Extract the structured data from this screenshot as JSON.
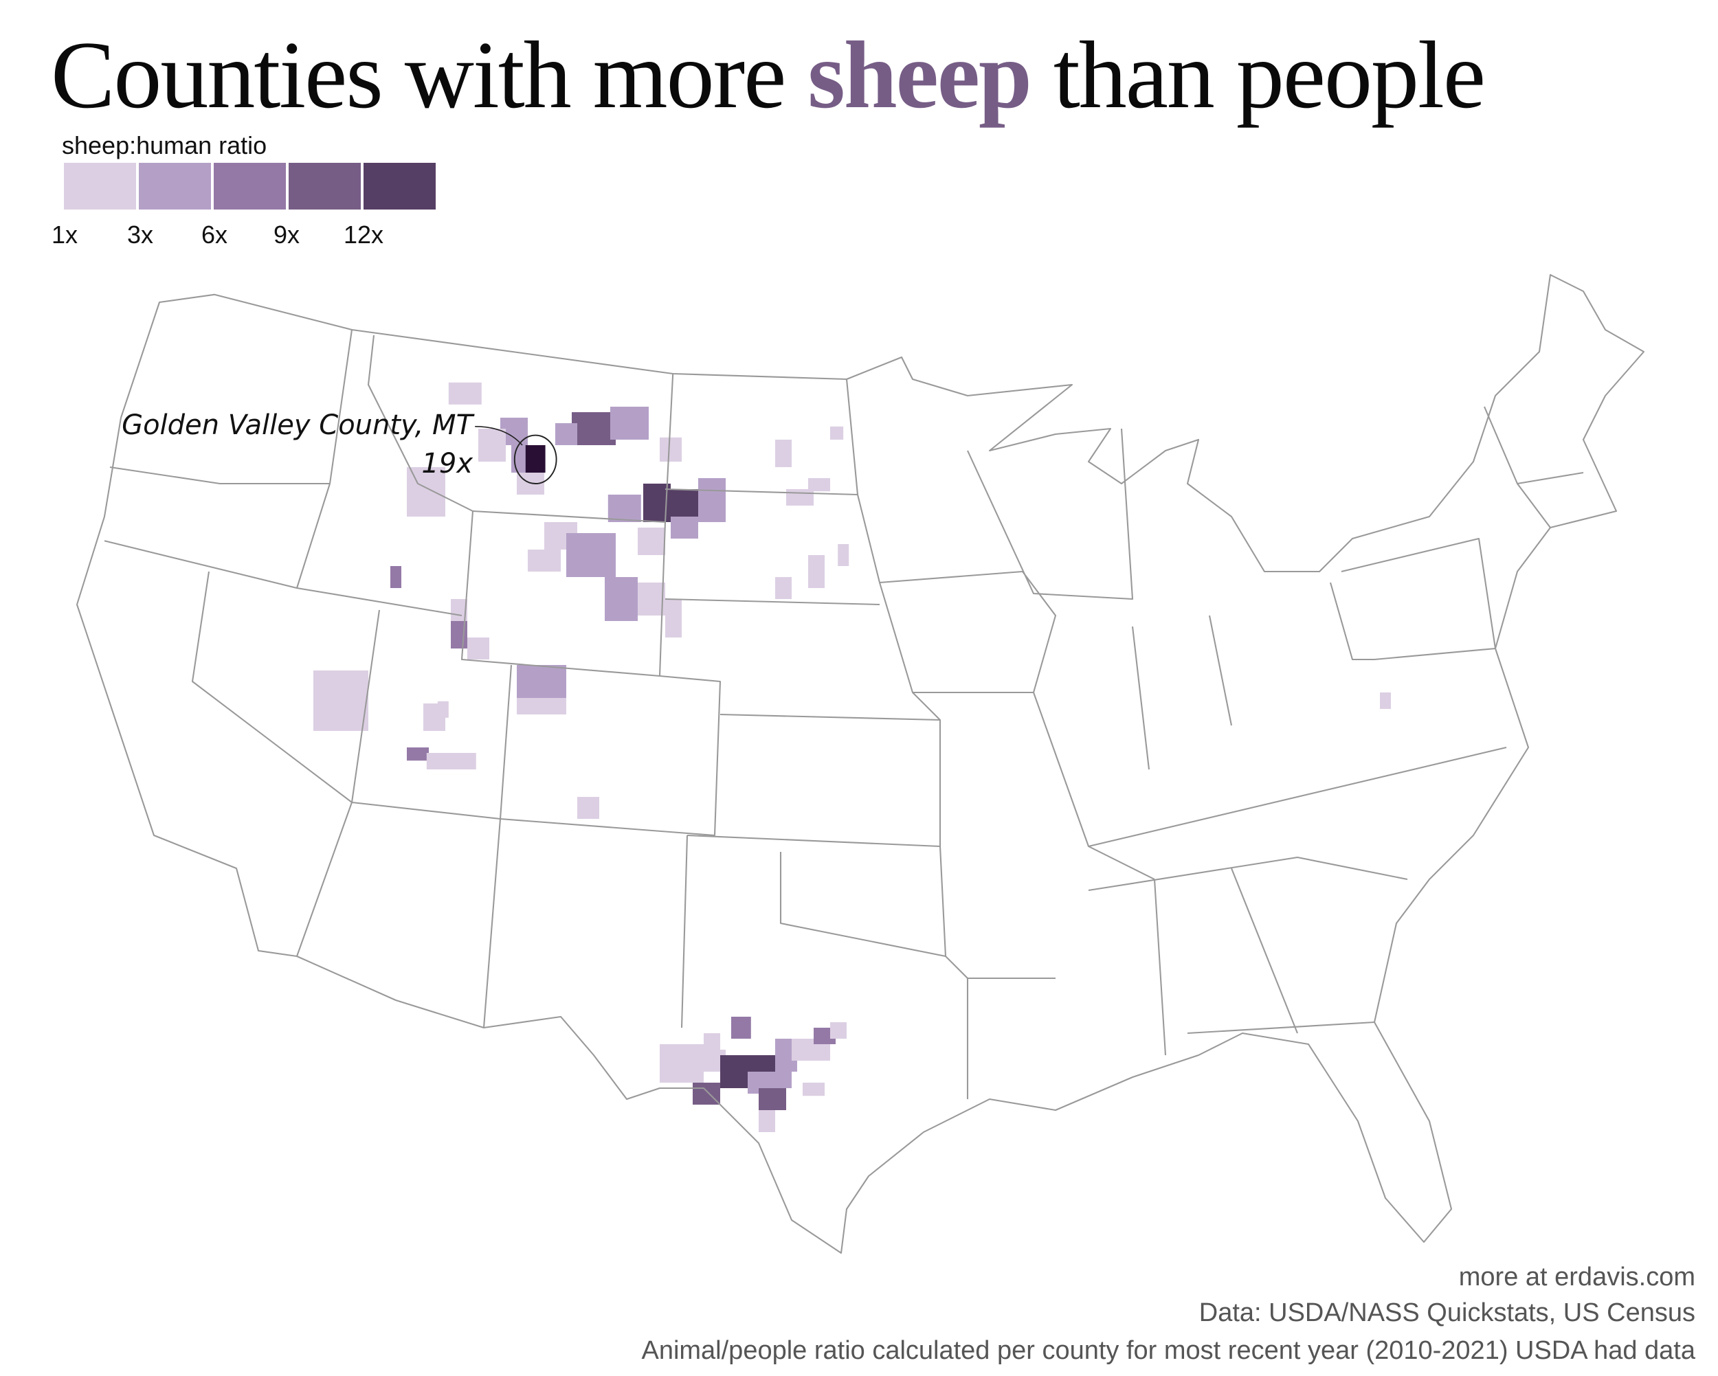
{
  "title": {
    "before": "Counties with more ",
    "accent": "sheep",
    "after": " than people"
  },
  "colors": {
    "accent": "#765d86",
    "state_lines": "#999999",
    "highlight": "#2a0f35"
  },
  "legend": {
    "label": "sheep:human ratio",
    "bins": [
      {
        "tick": "1x",
        "color": "#dccfe3"
      },
      {
        "tick": "3x",
        "color": "#b4a0c7"
      },
      {
        "tick": "6x",
        "color": "#9479a6"
      },
      {
        "tick": "9x",
        "color": "#765d86"
      },
      {
        "tick": "12x",
        "color": "#563f65"
      }
    ]
  },
  "annotation": {
    "county": "Golden Valley County, MT",
    "ratio": "19x"
  },
  "footer": {
    "site": "more at erdavis.com",
    "source": "Data: USDA/NASS Quickstats, US Census",
    "note": "Animal/people ratio calculated per county for most recent year (2010-2021) USDA had data"
  }
}
